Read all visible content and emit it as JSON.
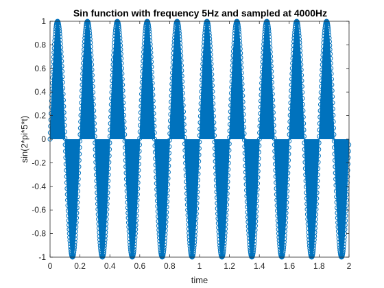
{
  "chart_data": {
    "type": "stem",
    "title": "Sin function with frequency 5Hz and sampled at 4000Hz",
    "xlabel": "time",
    "ylabel": "sin(2*pi*5*t)",
    "xlim": [
      0,
      2
    ],
    "ylim": [
      -1,
      1
    ],
    "x_ticks": [
      0,
      0.2,
      0.4,
      0.6,
      0.8,
      1,
      1.2,
      1.4,
      1.6,
      1.8,
      2
    ],
    "x_tick_labels": [
      "0",
      "0.2",
      "0.4",
      "0.6",
      "0.8",
      "1",
      "1.2",
      "1.4",
      "1.6",
      "1.8",
      "2"
    ],
    "y_ticks": [
      -1,
      -0.8,
      -0.6,
      -0.4,
      -0.2,
      0,
      0.2,
      0.4,
      0.6,
      0.8,
      1
    ],
    "y_tick_labels": [
      "-1",
      "-0.8",
      "-0.6",
      "-0.4",
      "-0.2",
      "0",
      "0.2",
      "0.4",
      "0.6",
      "0.8",
      "1"
    ],
    "grid": false,
    "series": [
      {
        "function": "sin(2*pi*5*t)",
        "frequency_hz": 5,
        "sampling_rate_hz": 4000,
        "t_start": 0,
        "t_end": 2,
        "color": "#0072BD",
        "marker": "circle"
      }
    ]
  }
}
